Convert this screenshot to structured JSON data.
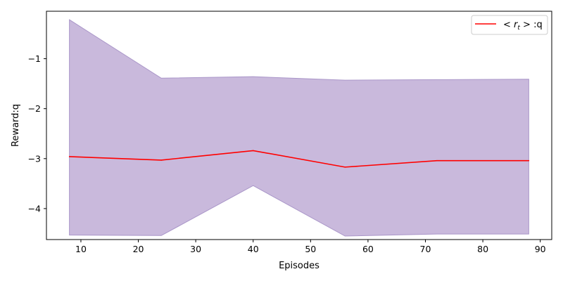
{
  "chart_data": {
    "type": "line",
    "title": "",
    "xlabel": "Episodes",
    "ylabel": "Reward:q",
    "xlim": [
      4,
      92
    ],
    "ylim": [
      -4.62,
      -0.05
    ],
    "xticks": [
      10,
      20,
      30,
      40,
      50,
      60,
      70,
      80,
      90
    ],
    "yticks": [
      -4,
      -3,
      -2,
      -1
    ],
    "ytick_labels": [
      "−4",
      "−3",
      "−2",
      "−1"
    ],
    "grid": false,
    "legend_position": "top-right",
    "x": [
      8,
      24,
      40,
      56,
      72,
      88
    ],
    "series": [
      {
        "name": "< r_t > :q",
        "name_parts": {
          "pre": "< ",
          "r": "r",
          "sub": "t",
          "post": " > :q"
        },
        "color": "#ff0000",
        "values": [
          -2.96,
          -3.03,
          -2.84,
          -3.17,
          -3.04,
          -3.04
        ]
      }
    ],
    "band": {
      "color": "#c9b9dc",
      "edge_color": "#a995c8",
      "upper": [
        -0.22,
        -1.39,
        -1.36,
        -1.43,
        -1.42,
        -1.41
      ],
      "lower": [
        -4.53,
        -4.54,
        -3.54,
        -4.55,
        -4.51,
        -4.51
      ]
    }
  }
}
